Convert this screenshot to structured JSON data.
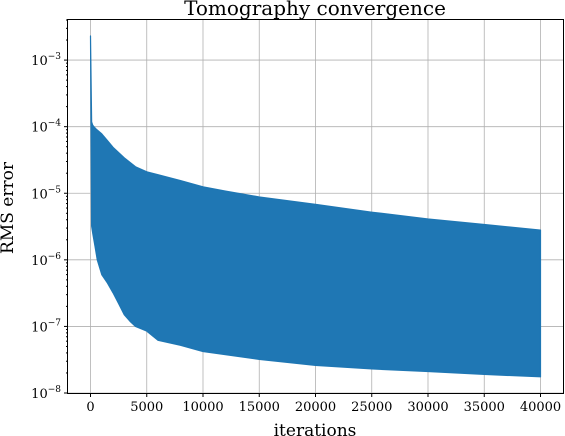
{
  "chart_data": {
    "type": "area",
    "title": "Tomography convergence",
    "xlabel": "iterations",
    "ylabel": "RMS error",
    "xlim": [
      -2000,
      42000
    ],
    "ylim": [
      1e-08,
      0.004
    ],
    "yscale": "log",
    "grid": true,
    "xticks": [
      0,
      5000,
      10000,
      15000,
      20000,
      25000,
      30000,
      35000,
      40000
    ],
    "xtick_labels": [
      "0",
      "5000",
      "10000",
      "15000",
      "20000",
      "25000",
      "30000",
      "35000",
      "40000"
    ],
    "yticks": [
      1e-08,
      1e-07,
      1e-06,
      1e-05,
      0.0001,
      0.001
    ],
    "ytick_labels": [
      {
        "base": "10",
        "exp": "−8"
      },
      {
        "base": "10",
        "exp": "−7"
      },
      {
        "base": "10",
        "exp": "−6"
      },
      {
        "base": "10",
        "exp": "−5"
      },
      {
        "base": "10",
        "exp": "−4"
      },
      {
        "base": "10",
        "exp": "−3"
      }
    ],
    "series": [
      {
        "color": "#1f77b4",
        "description_points": "oscillating RMS error; upper and lower envelopes over iterations",
        "upper_envelope": {
          "x": [
            0,
            100,
            200,
            300,
            500,
            1000,
            1500,
            2000,
            3000,
            4000,
            5000,
            6000,
            8000,
            10000,
            12000,
            15000,
            20000,
            25000,
            30000,
            35000,
            40000
          ],
          "y": [
            0.0023,
            0.000118,
            0.000105,
            0.0001,
            9.2e-05,
            7.8e-05,
            6.2e-05,
            4.9e-05,
            3.4e-05,
            2.5e-05,
            2.1e-05,
            1.9e-05,
            1.55e-05,
            1.25e-05,
            1.08e-05,
            8.8e-06,
            6.8e-06,
            5.2e-06,
            4.1e-06,
            3.4e-06,
            2.8e-06
          ]
        },
        "lower_envelope": {
          "x": [
            0,
            100,
            200,
            400,
            600,
            1000,
            1500,
            2000,
            2500,
            3000,
            3500,
            4000,
            5000,
            6000,
            8000,
            10000,
            15000,
            20000,
            25000,
            30000,
            35000,
            40000
          ],
          "y": [
            0.0023,
            3.2e-06,
            2.5e-06,
            1.6e-06,
            1e-06,
            6e-07,
            4.5e-07,
            3.2e-07,
            2.2e-07,
            1.5e-07,
            1.2e-07,
            1e-07,
            8.5e-08,
            6.2e-08,
            5.2e-08,
            4.2e-08,
            3.2e-08,
            2.6e-08,
            2.3e-08,
            2.1e-08,
            1.9e-08,
            1.75e-08
          ]
        }
      }
    ]
  }
}
